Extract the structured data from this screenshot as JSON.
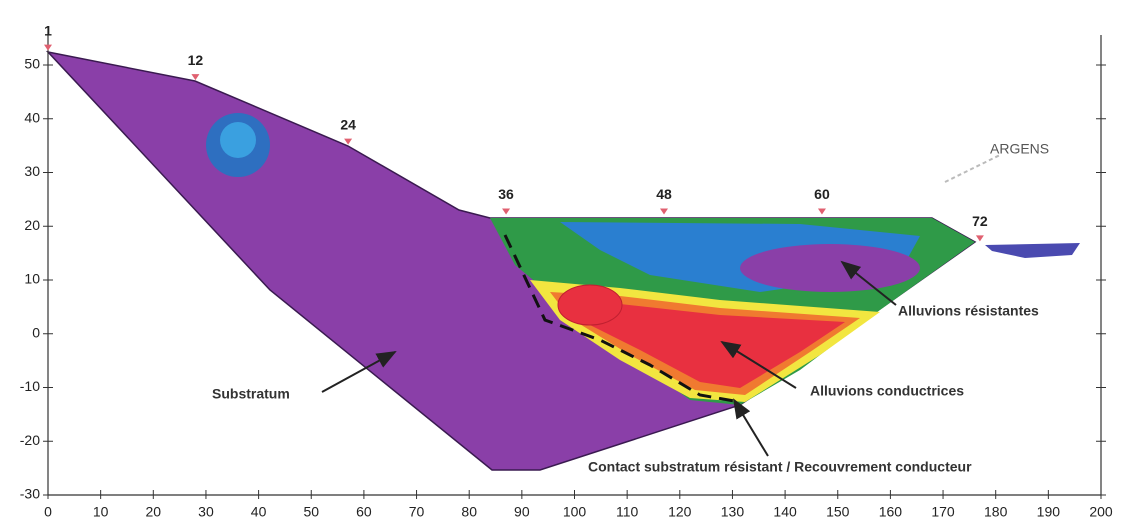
{
  "chart_data": {
    "type": "section",
    "xlim": [
      0,
      200
    ],
    "ylim": [
      -30,
      50
    ],
    "xticks": [
      0,
      10,
      20,
      30,
      40,
      50,
      60,
      70,
      80,
      90,
      100,
      110,
      120,
      130,
      140,
      150,
      160,
      170,
      180,
      190,
      200
    ],
    "yticks": [
      -30,
      -20,
      -10,
      0,
      10,
      20,
      30,
      40,
      50
    ],
    "x": [
      0,
      28,
      57,
      87,
      117,
      147,
      177
    ],
    "values": [
      52.5,
      47,
      35,
      22,
      22,
      22,
      17
    ],
    "point_labels": [
      "1",
      "12",
      "24",
      "36",
      "48",
      "60",
      "72"
    ],
    "color": "#e06070",
    "annotations": [
      "Substratum",
      "Alluvions conductrices",
      "Alluvions résistantes",
      "Contact substratum résistant / Recouvrement conducteur",
      "ARGENS"
    ]
  }
}
